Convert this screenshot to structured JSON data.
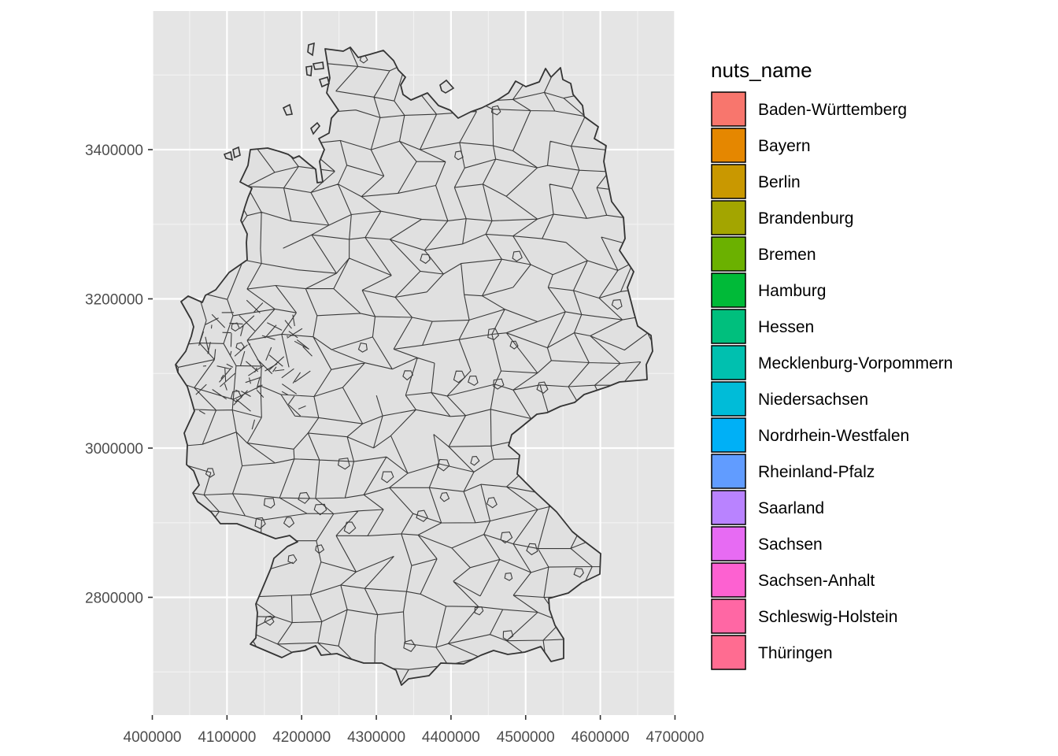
{
  "chart_data": {
    "type": "map",
    "region": "Germany",
    "features": "district boundaries",
    "feature_fill": "#e0e0e0",
    "feature_stroke": "#3a3a3a",
    "panel_background": "#e5e5e5",
    "grid_color": "#ffffff",
    "grid": true,
    "x_ticks": [
      "4000000",
      "4100000",
      "4200000",
      "4300000",
      "4400000",
      "4500000",
      "4600000",
      "4700000"
    ],
    "x_tick_values": [
      4000000,
      4100000,
      4200000,
      4300000,
      4400000,
      4500000,
      4600000,
      4700000
    ],
    "y_ticks": [
      "2800000",
      "3000000",
      "3200000",
      "3400000"
    ],
    "y_tick_values": [
      2800000,
      3000000,
      3200000,
      3400000
    ],
    "xlim": [
      4000000,
      4700000
    ],
    "ylim": [
      2690000,
      3580000
    ],
    "legend": {
      "title": "nuts_name",
      "position": "right",
      "entries": [
        {
          "label": "Baden-Württemberg",
          "color": "#F8766D"
        },
        {
          "label": "Bayern",
          "color": "#E58700"
        },
        {
          "label": "Berlin",
          "color": "#C99800"
        },
        {
          "label": "Brandenburg",
          "color": "#A3A500"
        },
        {
          "label": "Bremen",
          "color": "#6BB100"
        },
        {
          "label": "Hamburg",
          "color": "#00BA38"
        },
        {
          "label": "Hessen",
          "color": "#00BF7D"
        },
        {
          "label": "Mecklenburg-Vorpommern",
          "color": "#00C0AF"
        },
        {
          "label": "Niedersachsen",
          "color": "#00BCD8"
        },
        {
          "label": "Nordrhein-Westfalen",
          "color": "#00B0F6"
        },
        {
          "label": "Rheinland-Pfalz",
          "color": "#619CFF"
        },
        {
          "label": "Saarland",
          "color": "#B983FF"
        },
        {
          "label": "Sachsen",
          "color": "#E76BF3"
        },
        {
          "label": "Sachsen-Anhalt",
          "color": "#FD61D1"
        },
        {
          "label": "Schleswig-Holstein",
          "color": "#FF67A4"
        },
        {
          "label": "Thüringen",
          "color": "#FF6C91"
        }
      ]
    }
  }
}
